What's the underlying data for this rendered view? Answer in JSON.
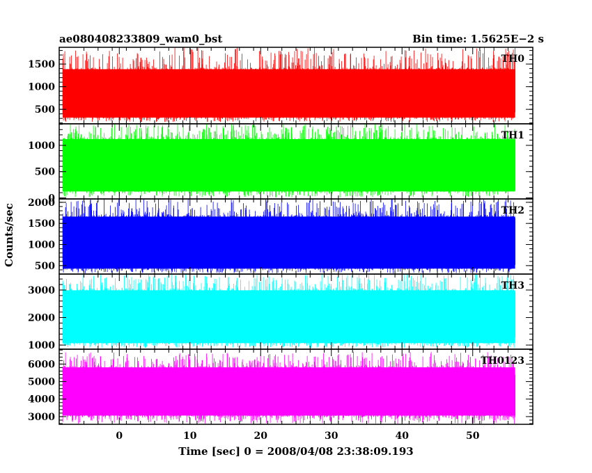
{
  "chart_data": {
    "type": "line",
    "title_left": "ae080408233809_wam0_bst",
    "title_right": "Bin time: 1.5625E−2 s",
    "xlabel": "Time [sec] 0 = 2008/04/08 23:38:09.193",
    "ylabel": "Counts/sec",
    "xlim": [
      -8.5,
      58.5
    ],
    "data_range": [
      -8,
      56
    ],
    "x_ticks": [
      0,
      10,
      20,
      30,
      40,
      50
    ],
    "x_tick_labels": [
      "0",
      "10",
      "20",
      "30",
      "40",
      "50"
    ],
    "grid": false,
    "panels": [
      {
        "name": "TH0",
        "color": "#ff0000",
        "ylim": [
          180,
          1870
        ],
        "yticks": [
          500,
          1000,
          1500
        ],
        "ytick_labels": [
          "500",
          "1000",
          "1500"
        ],
        "band_low": 310,
        "band_high": 1420,
        "spike_max": 1870,
        "dip_min": 220
      },
      {
        "name": "TH1",
        "color": "#00ff00",
        "ylim": [
          -20,
          1410
        ],
        "yticks": [
          0,
          500,
          1000
        ],
        "ytick_labels": [
          "0",
          "500",
          "1000"
        ],
        "band_low": 120,
        "band_high": 1150,
        "spike_max": 1410,
        "dip_min": 10
      },
      {
        "name": "TH2",
        "color": "#0000ff",
        "ylim": [
          300,
          2080
        ],
        "yticks": [
          500,
          1000,
          1500,
          2000
        ],
        "ytick_labels": [
          "500",
          "1000",
          "1500",
          "2000"
        ],
        "band_low": 420,
        "band_high": 1700,
        "spike_max": 2080,
        "dip_min": 320
      },
      {
        "name": "TH3",
        "color": "#00ffff",
        "ylim": [
          850,
          3580
        ],
        "yticks": [
          1000,
          2000,
          3000
        ],
        "ytick_labels": [
          "1000",
          "2000",
          "3000"
        ],
        "band_low": 1050,
        "band_high": 3050,
        "spike_max": 3580,
        "dip_min": 900
      },
      {
        "name": "TH0123",
        "color": "#ff00ff",
        "ylim": [
          2560,
          6850
        ],
        "yticks": [
          3000,
          4000,
          5000,
          6000
        ],
        "ytick_labels": [
          "3000",
          "4000",
          "5000",
          "6000"
        ],
        "band_low": 3000,
        "band_high": 5900,
        "spike_max": 6700,
        "dip_min": 2600
      }
    ]
  }
}
